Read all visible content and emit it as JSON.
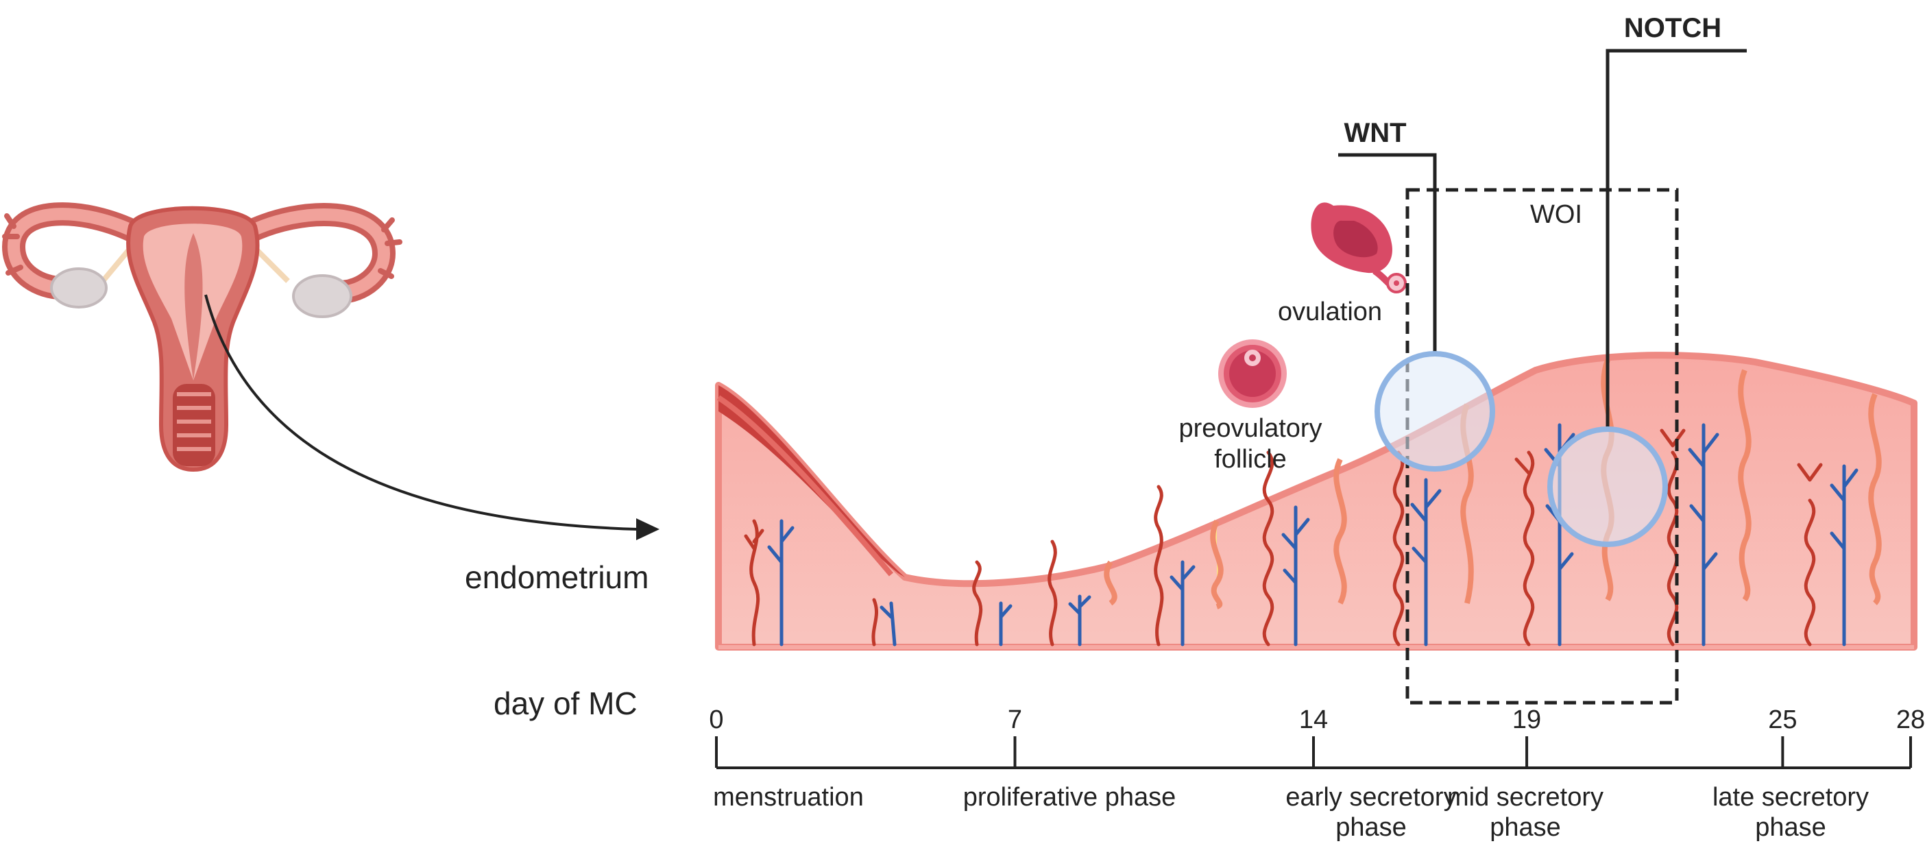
{
  "labels": {
    "endometrium": "endometrium",
    "day_axis": "day of MC",
    "preovulatory_1": "preovulatory",
    "preovulatory_2": "follicle",
    "ovulation": "ovulation",
    "woi": "WOI",
    "wnt": "WNT",
    "notch": "NOTCH"
  },
  "timeline": {
    "days": [
      {
        "label": "0",
        "day": 0
      },
      {
        "label": "7",
        "day": 7
      },
      {
        "label": "14",
        "day": 14
      },
      {
        "label": "19",
        "day": 19
      },
      {
        "label": "25",
        "day": 25
      },
      {
        "label": "28",
        "day": 28
      }
    ],
    "phases": [
      {
        "lines": [
          "menstruation"
        ]
      },
      {
        "lines": [
          "proliferative phase"
        ]
      },
      {
        "lines": [
          "early secretory",
          "phase"
        ]
      },
      {
        "lines": [
          "mid secretory",
          "phase"
        ]
      },
      {
        "lines": [
          "late secretory",
          "phase"
        ]
      }
    ]
  },
  "colors": {
    "tissue": "#f6b3ad",
    "tissue_edge": "#ec7f79",
    "menstrual": "#c9403d",
    "gland_yellow": "#fde58a",
    "artery": "#c0392b",
    "vein": "#2e5fb0",
    "highlight_circle": "#8fb4e3",
    "axis": "#222222"
  }
}
